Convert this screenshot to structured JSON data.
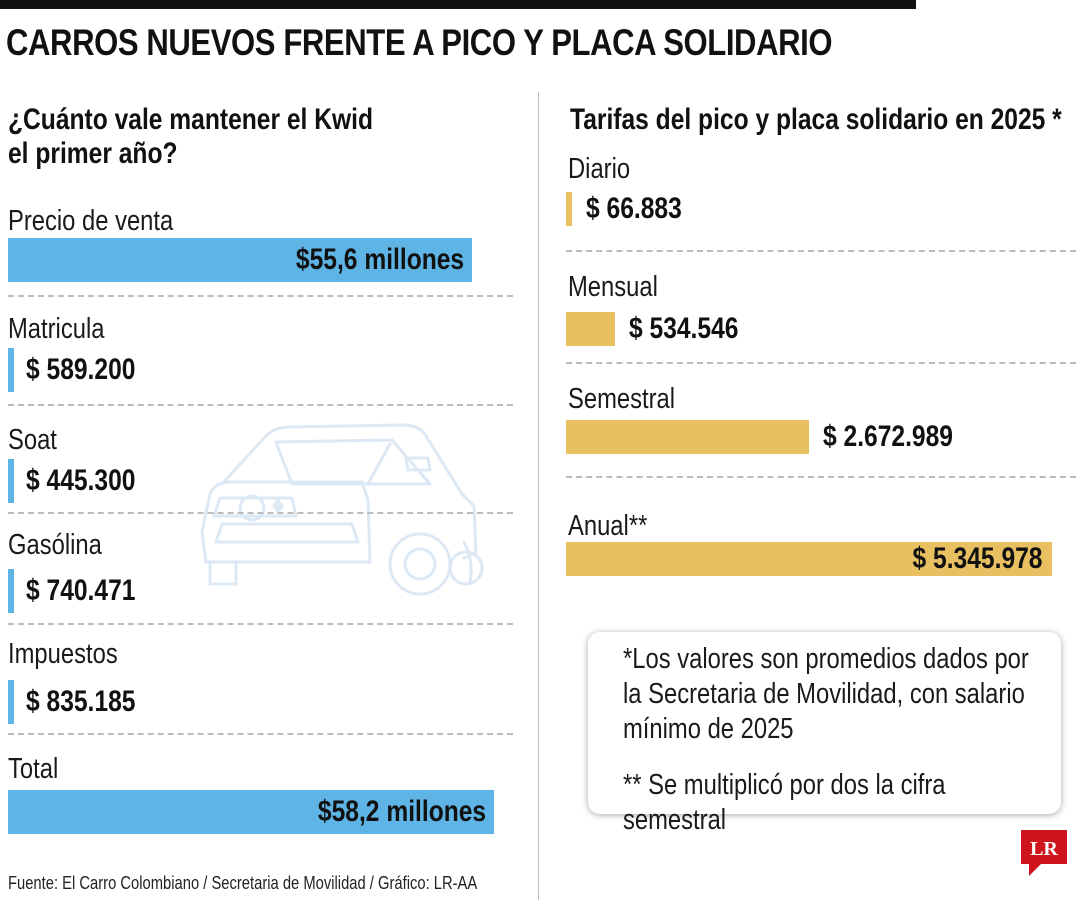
{
  "title": "CARROS NUEVOS FRENTE A PICO Y PLACA SOLIDARIO",
  "left": {
    "subtitle_line1": "¿Cuánto vale mantener el Kwid",
    "subtitle_line2": "el primer año?"
  },
  "right": {
    "subtitle": "Tarifas del pico y placa solidario en 2025 *"
  },
  "chart_data": [
    {
      "type": "bar",
      "title": "¿Cuánto vale mantener el Kwid el primer año?",
      "categories": [
        "Precio de venta",
        "Matricula",
        "Soat",
        "Gasólina",
        "Impuestos",
        "Total"
      ],
      "values": [
        55600000,
        589200,
        445300,
        740471,
        835185,
        58200000
      ],
      "value_labels": [
        "$55,6 millones",
        "$ 589.200",
        "$ 445.300",
        "$ 740.471",
        "$ 835.185",
        "$58,2 millones"
      ],
      "orientation": "horizontal",
      "colors": {
        "bar": "#5fb4e6"
      }
    },
    {
      "type": "bar",
      "title": "Tarifas del pico y placa solidario en 2025 *",
      "categories": [
        "Diario",
        "Mensual",
        "Semestral",
        "Anual**"
      ],
      "values": [
        66883,
        534546,
        2672989,
        5345978
      ],
      "value_labels": [
        "$ 66.883",
        "$ 534.546",
        "$ 2.672.989",
        "$ 5.345.978"
      ],
      "orientation": "horizontal",
      "colors": {
        "bar": "#e8c062"
      }
    }
  ],
  "notes": {
    "line1": "*Los valores son promedios dados por la Secretaria de Movilidad, con salario mínimo de 2025",
    "line2": "** Se multiplicó por dos la cifra semestral"
  },
  "source": "Fuente: El Carro Colombiano / Secretaria de Movilidad / Gráfico: LR-AA",
  "logo": {
    "text": "LR",
    "color": "#d0141b",
    "icon": "lr-logo-icon"
  },
  "illustration": {
    "icon": "car-outline-icon",
    "color": "#dce8f4"
  }
}
